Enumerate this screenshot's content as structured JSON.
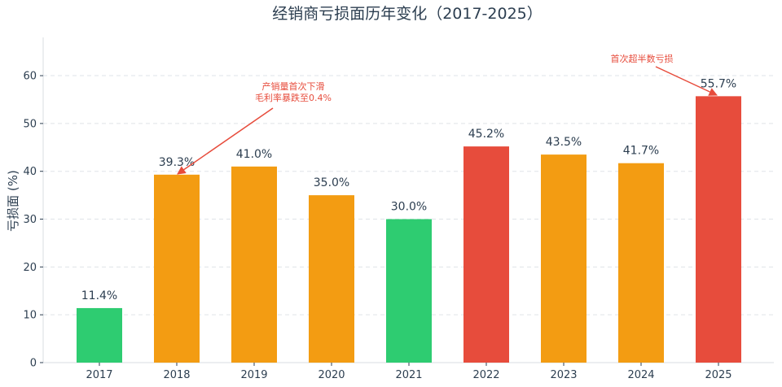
{
  "chart_data": {
    "type": "bar",
    "title": "经销商亏损面历年变化（2017-2025）",
    "xlabel": "",
    "ylabel": "亏损面 (%)",
    "ylim": [
      0,
      68
    ],
    "yticks": [
      0,
      10,
      20,
      30,
      40,
      50,
      60
    ],
    "grid": "horizontal dashed",
    "categories": [
      "2017",
      "2018",
      "2019",
      "2020",
      "2021",
      "2022",
      "2023",
      "2024",
      "2025"
    ],
    "values": [
      11.4,
      39.3,
      41.0,
      35.0,
      30.0,
      45.2,
      43.5,
      41.7,
      55.7
    ],
    "value_labels": [
      "11.4%",
      "39.3%",
      "41.0%",
      "35.0%",
      "30.0%",
      "45.2%",
      "43.5%",
      "41.7%",
      "55.7%"
    ],
    "bar_colors": [
      "#2ecc71",
      "#f39c12",
      "#f39c12",
      "#f39c12",
      "#2ecc71",
      "#e74c3c",
      "#f39c12",
      "#f39c12",
      "#e74c3c"
    ],
    "annotations": [
      {
        "category": "2018",
        "value": 39.3,
        "lines": [
          "产销量首次下滑",
          "毛利率暴跌至0.4%"
        ],
        "color": "#e74c3c"
      },
      {
        "category": "2025",
        "value": 55.7,
        "lines": [
          "首次超半数亏损"
        ],
        "color": "#e74c3c"
      }
    ]
  }
}
